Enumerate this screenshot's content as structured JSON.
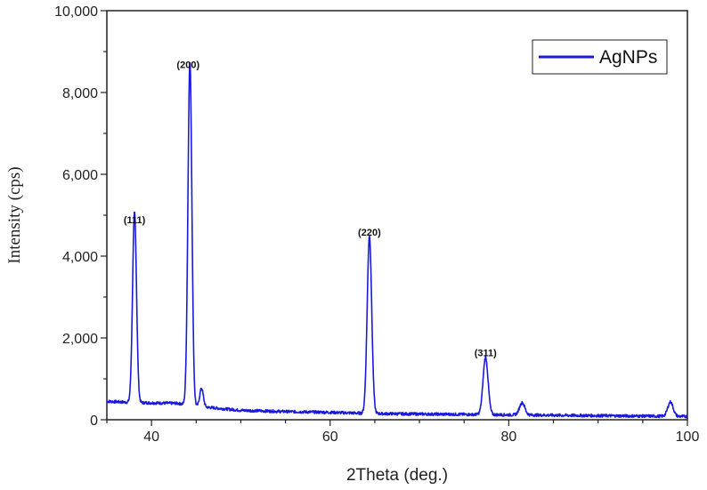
{
  "chart_data": {
    "type": "line",
    "title": "",
    "xlabel": "2Theta (deg.)",
    "ylabel": "Intensity (cps)",
    "xlim": [
      35,
      100
    ],
    "ylim": [
      0,
      10000
    ],
    "x_ticks": [
      40,
      60,
      80,
      100
    ],
    "x_tick_labels": [
      "40",
      "60",
      "80",
      "100"
    ],
    "y_ticks": [
      0,
      2000,
      4000,
      6000,
      8000,
      10000
    ],
    "y_tick_labels": [
      "0",
      "2,000",
      "4,000",
      "6,000",
      "8,000",
      "10,000"
    ],
    "grid": false,
    "legend_position": "top-right",
    "series": [
      {
        "name": "AgNPs",
        "color": "#1a1adc",
        "baseline": [
          [
            35,
            450
          ],
          [
            38,
            420
          ],
          [
            43,
            400
          ],
          [
            45,
            330
          ],
          [
            50,
            230
          ],
          [
            55,
            200
          ],
          [
            60,
            180
          ],
          [
            65,
            150
          ],
          [
            70,
            140
          ],
          [
            75,
            130
          ],
          [
            80,
            120
          ],
          [
            85,
            110
          ],
          [
            90,
            100
          ],
          [
            95,
            90
          ],
          [
            100,
            80
          ]
        ],
        "peaks": [
          {
            "x": 38.1,
            "height": 4650,
            "width": 0.22
          },
          {
            "x": 44.3,
            "height": 8400,
            "width": 0.22
          },
          {
            "x": 45.6,
            "height": 450,
            "width": 0.2
          },
          {
            "x": 64.4,
            "height": 4350,
            "width": 0.25
          },
          {
            "x": 77.4,
            "height": 1400,
            "width": 0.28
          },
          {
            "x": 81.5,
            "height": 300,
            "width": 0.3
          },
          {
            "x": 98.1,
            "height": 350,
            "width": 0.3
          }
        ]
      }
    ],
    "annotations": [
      {
        "text": "(111)",
        "x": 38.1,
        "y": 4800
      },
      {
        "text": "(200)",
        "x": 44.1,
        "y": 8600
      },
      {
        "text": "(220)",
        "x": 64.4,
        "y": 4500
      },
      {
        "text": "(311)",
        "x": 77.4,
        "y": 1550
      }
    ]
  }
}
